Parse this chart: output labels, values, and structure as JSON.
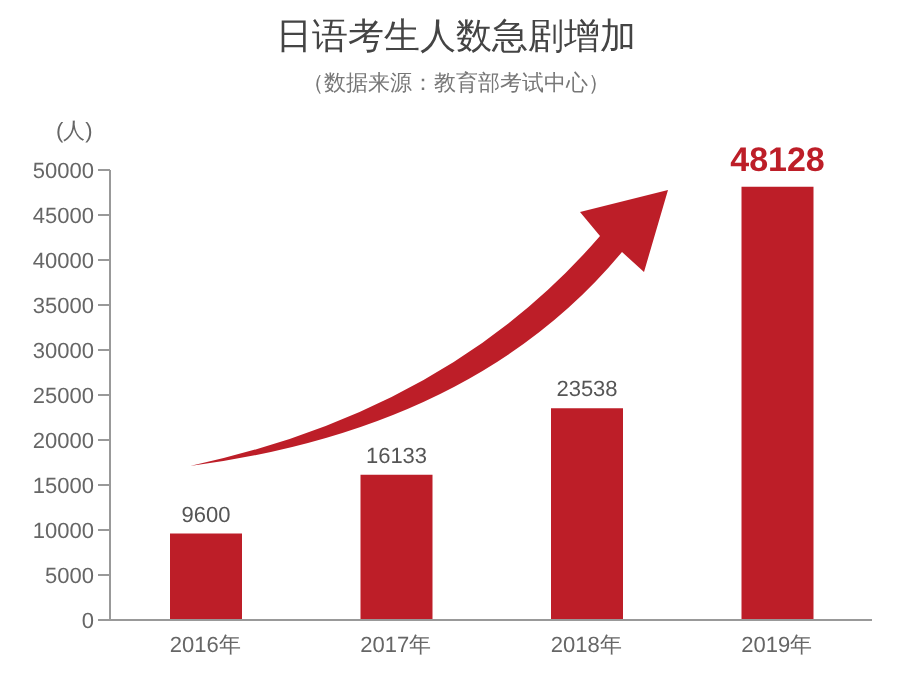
{
  "chart_data": {
    "type": "bar",
    "title": "日语考生人数急剧增加",
    "subtitle": "（数据来源：教育部考试中心）",
    "ylabel": "(人)",
    "categories": [
      "2016年",
      "2017年",
      "2018年",
      "2019年"
    ],
    "values": [
      9600,
      16133,
      23538,
      48128
    ],
    "color": "#bd1e28",
    "ylim": [
      0,
      50000
    ],
    "yticks": [
      0,
      5000,
      10000,
      15000,
      20000,
      25000,
      30000,
      35000,
      40000,
      45000,
      50000
    ],
    "grid": false,
    "data_labels": true
  }
}
